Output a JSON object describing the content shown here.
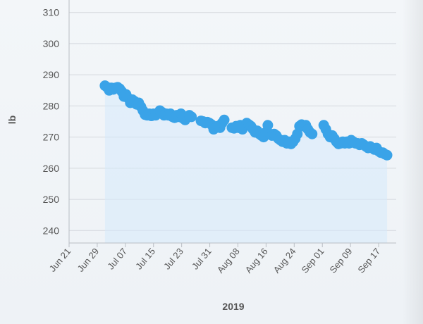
{
  "chart_data": {
    "type": "scatter",
    "title": "",
    "xlabel": "2019",
    "ylabel": "lb",
    "ylim": [
      236,
      314
    ],
    "xlim_day": [
      172,
      265
    ],
    "yticks": [
      240,
      250,
      260,
      270,
      280,
      290,
      300,
      310
    ],
    "ytick_labels": [
      "240",
      "250",
      "260",
      "270",
      "280",
      "290",
      "300",
      "310"
    ],
    "xticks": [
      {
        "label": "Jun 21",
        "day": 172
      },
      {
        "label": "Jun 29",
        "day": 180
      },
      {
        "label": "Jul 07",
        "day": 188
      },
      {
        "label": "Jul 15",
        "day": 196
      },
      {
        "label": "Jul 23",
        "day": 204
      },
      {
        "label": "Jul 31",
        "day": 212
      },
      {
        "label": "Aug 08",
        "day": 220
      },
      {
        "label": "Aug 16",
        "day": 228
      },
      {
        "label": "Aug 24",
        "day": 236
      },
      {
        "label": "Sep 01",
        "day": 244
      },
      {
        "label": "Sep 09",
        "day": 252
      },
      {
        "label": "Sep 17",
        "day": 260
      }
    ],
    "grid": true,
    "fill_under": true,
    "colors": {
      "point": "#3aa3e8",
      "fill": "#d6e9fb",
      "grid": "#d4d8dd",
      "axis": "#b9bec4"
    },
    "series": [
      {
        "name": "",
        "x": [
          182.2,
          182.8,
          183.4,
          184.0,
          184.6,
          185.2,
          185.8,
          186.4,
          187.0,
          187.6,
          188.2,
          188.8,
          189.4,
          190.0,
          190.6,
          191.2,
          191.8,
          192.4,
          193.0,
          193.6,
          194.2,
          194.8,
          195.4,
          196.0,
          196.6,
          197.2,
          197.8,
          198.4,
          199.0,
          199.6,
          200.2,
          200.8,
          201.4,
          202.0,
          202.6,
          203.2,
          203.8,
          204.4,
          205.0,
          205.6,
          206.2,
          206.8,
          209.5,
          210.1,
          210.7,
          211.3,
          211.9,
          212.5,
          213.1,
          213.7,
          214.3,
          214.9,
          215.5,
          216.1,
          218.3,
          218.9,
          219.5,
          220.1,
          220.7,
          221.3,
          221.9,
          222.5,
          223.1,
          223.7,
          224.3,
          224.9,
          225.5,
          226.1,
          226.7,
          227.3,
          227.9,
          228.5,
          229.1,
          229.7,
          230.3,
          230.9,
          231.5,
          232.1,
          232.7,
          233.3,
          233.9,
          234.5,
          235.1,
          235.7,
          236.3,
          236.9,
          237.5,
          238.1,
          238.7,
          239.3,
          239.9,
          240.5,
          241.1,
          244.4,
          245.0,
          245.6,
          246.2,
          246.8,
          247.4,
          248.0,
          248.6,
          249.2,
          249.8,
          250.4,
          251.0,
          251.6,
          252.2,
          252.8,
          253.4,
          254.0,
          254.6,
          255.2,
          255.8,
          256.4,
          257.0,
          257.6,
          258.2,
          258.8,
          259.4,
          260.0,
          260.6,
          261.2,
          261.8,
          262.4
        ],
        "y": [
          286.5,
          286.0,
          285.0,
          285.8,
          285.3,
          285.8,
          286.0,
          285.5,
          284.6,
          283.0,
          283.7,
          282.5,
          281.0,
          282.0,
          281.5,
          280.5,
          281.0,
          279.8,
          278.5,
          277.2,
          277.0,
          277.5,
          276.8,
          277.5,
          277.0,
          277.5,
          278.5,
          278.0,
          277.0,
          277.5,
          277.0,
          277.5,
          276.5,
          276.2,
          277.0,
          276.5,
          277.5,
          276.0,
          275.5,
          276.5,
          277.0,
          276.5,
          275.2,
          275.0,
          274.5,
          274.8,
          274.5,
          274.0,
          272.5,
          273.0,
          273.5,
          273.0,
          274.5,
          275.5,
          273.0,
          272.8,
          273.5,
          273.0,
          273.8,
          272.5,
          273.5,
          274.5,
          274.0,
          273.5,
          272.5,
          271.5,
          272.0,
          271.0,
          270.5,
          270.0,
          271.5,
          273.8,
          271.0,
          270.5,
          271.0,
          270.5,
          269.5,
          269.0,
          268.5,
          269.0,
          268.0,
          268.5,
          267.8,
          268.5,
          269.5,
          271.0,
          273.5,
          274.0,
          273.5,
          273.8,
          272.5,
          271.5,
          271.0,
          273.8,
          272.5,
          271.0,
          270.0,
          270.5,
          269.5,
          268.5,
          267.8,
          268.0,
          268.5,
          268.0,
          268.5,
          268.0,
          269.0,
          268.5,
          268.0,
          268.0,
          267.5,
          268.0,
          267.5,
          267.0,
          266.5,
          267.0,
          266.5,
          266.0,
          266.5,
          265.5,
          265.0,
          265.0,
          264.5,
          264.2
        ]
      }
    ]
  }
}
